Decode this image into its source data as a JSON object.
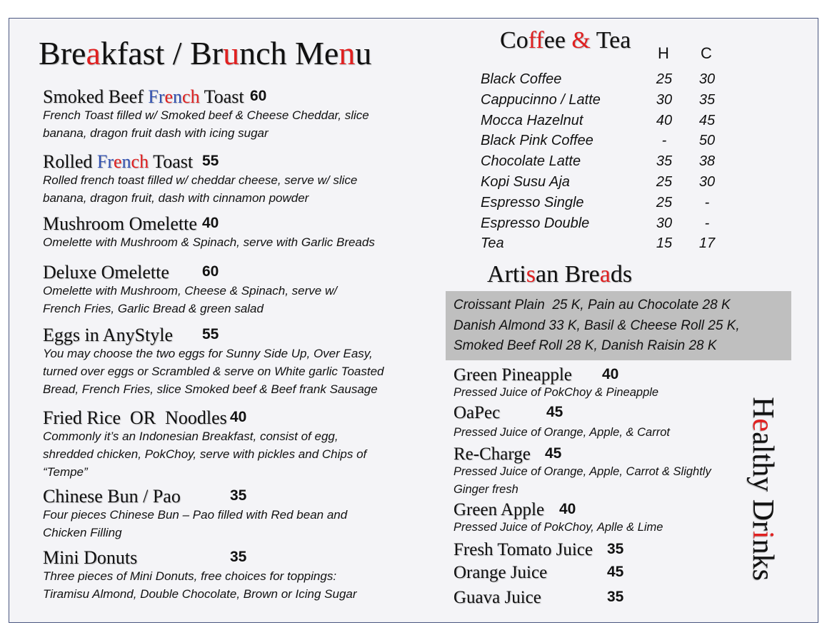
{
  "breakfast": {
    "title": "Breakfast / Brunch Menu",
    "items": [
      {
        "name": "Smoked Beef French Toast",
        "price": 60,
        "description": [
          "French Toast filled w/ Smoked beef & Cheese Cheddar, slice",
          "banana, dragon fruit dash with icing sugar"
        ]
      },
      {
        "name": "Rolled French Toast",
        "price": 55,
        "description": [
          "Rolled french toast filled w/ cheddar cheese, serve w/ slice",
          "banana, dragon fruit, dash with cinnamon powder"
        ]
      },
      {
        "name": "Mushroom Omelette",
        "price": 40,
        "description": [
          "Omelette with Mushroom & Spinach, serve with Garlic Breads"
        ]
      },
      {
        "name": "Deluxe Omelette",
        "price": 60,
        "description": [
          "Omelette with Mushroom, Cheese & Spinach, serve w/",
          "French Fries, Garlic Bread & green salad"
        ]
      },
      {
        "name": "Eggs in AnyStyle",
        "price": 55,
        "description": [
          "You may choose the two eggs for Sunny Side Up, Over Easy,",
          "turned over eggs or Scrambled & serve on White garlic Toasted",
          "Bread, French Fries, slice Smoked beef & Beef frank Sausage"
        ]
      },
      {
        "name": "Fried Rice  OR  Noodles",
        "price": 40,
        "description": [
          "Commonly it’s an Indonesian Breakfast, consist of egg,",
          "shredded chicken, PokChoy, serve with pickles and Chips of",
          "“Tempe”"
        ]
      },
      {
        "name": "Chinese Bun / Pao",
        "price": 35,
        "description": [
          "Four pieces Chinese Bun – Pao filled with Red bean and",
          "Chicken Filling"
        ]
      },
      {
        "name": "Mini Donuts",
        "price": 35,
        "description": [
          "Three pieces of Mini Donuts, free choices for toppings:",
          "Tiramisu Almond, Double Chocolate, Brown or Icing Sugar"
        ]
      }
    ]
  },
  "coffee_tea": {
    "title": "Coffee & Tea",
    "columns": [
      "H",
      "C"
    ],
    "rows": [
      {
        "name": "Black Coffee",
        "h": 25,
        "c": 30
      },
      {
        "name": "Cappucinno / Latte",
        "h": 30,
        "c": 35
      },
      {
        "name": "Mocca Hazelnut",
        "h": 40,
        "c": 45
      },
      {
        "name": "Black Pink Coffee",
        "h": "-",
        "c": 50
      },
      {
        "name": "Chocolate Latte",
        "h": 35,
        "c": 38
      },
      {
        "name": "Kopi Susu Aja",
        "h": 25,
        "c": 30
      },
      {
        "name": "Espresso Single",
        "h": 25,
        "c": "-"
      },
      {
        "name": "Espresso Double",
        "h": 30,
        "c": "-"
      },
      {
        "name": "Tea",
        "h": 15,
        "c": 17
      }
    ]
  },
  "artisan_breads": {
    "title": "Artisan Breads",
    "lines": [
      "Croissant Plain  25 K, Pain au Chocolate 28 K",
      "Danish Almond 33 K, Basil & Cheese Roll 25 K,",
      "Smoked Beef Roll 28 K, Danish Raisin 28 K"
    ]
  },
  "healthy_drinks": {
    "title": "Healthy Drinks",
    "items": [
      {
        "name": "Green Pineapple",
        "price": 40,
        "description": [
          "Pressed Juice of PokChoy & Pineapple"
        ]
      },
      {
        "name": "OaPec",
        "price": 45,
        "description": [
          "Pressed Juice of Orange, Apple, & Carrot"
        ]
      },
      {
        "name": "Re-Charge",
        "price": 45,
        "description": [
          "Pressed Juice of Orange, Apple, Carrot & Slightly",
          "Ginger fresh"
        ]
      },
      {
        "name": "Green Apple",
        "price": 40,
        "description": [
          "Pressed Juice of PokChoy, Aplle & Lime"
        ]
      },
      {
        "name": "Fresh Tomato Juice",
        "price": 35
      },
      {
        "name": "Orange Juice",
        "price": 45
      },
      {
        "name": "Guava Juice",
        "price": 35
      }
    ]
  }
}
